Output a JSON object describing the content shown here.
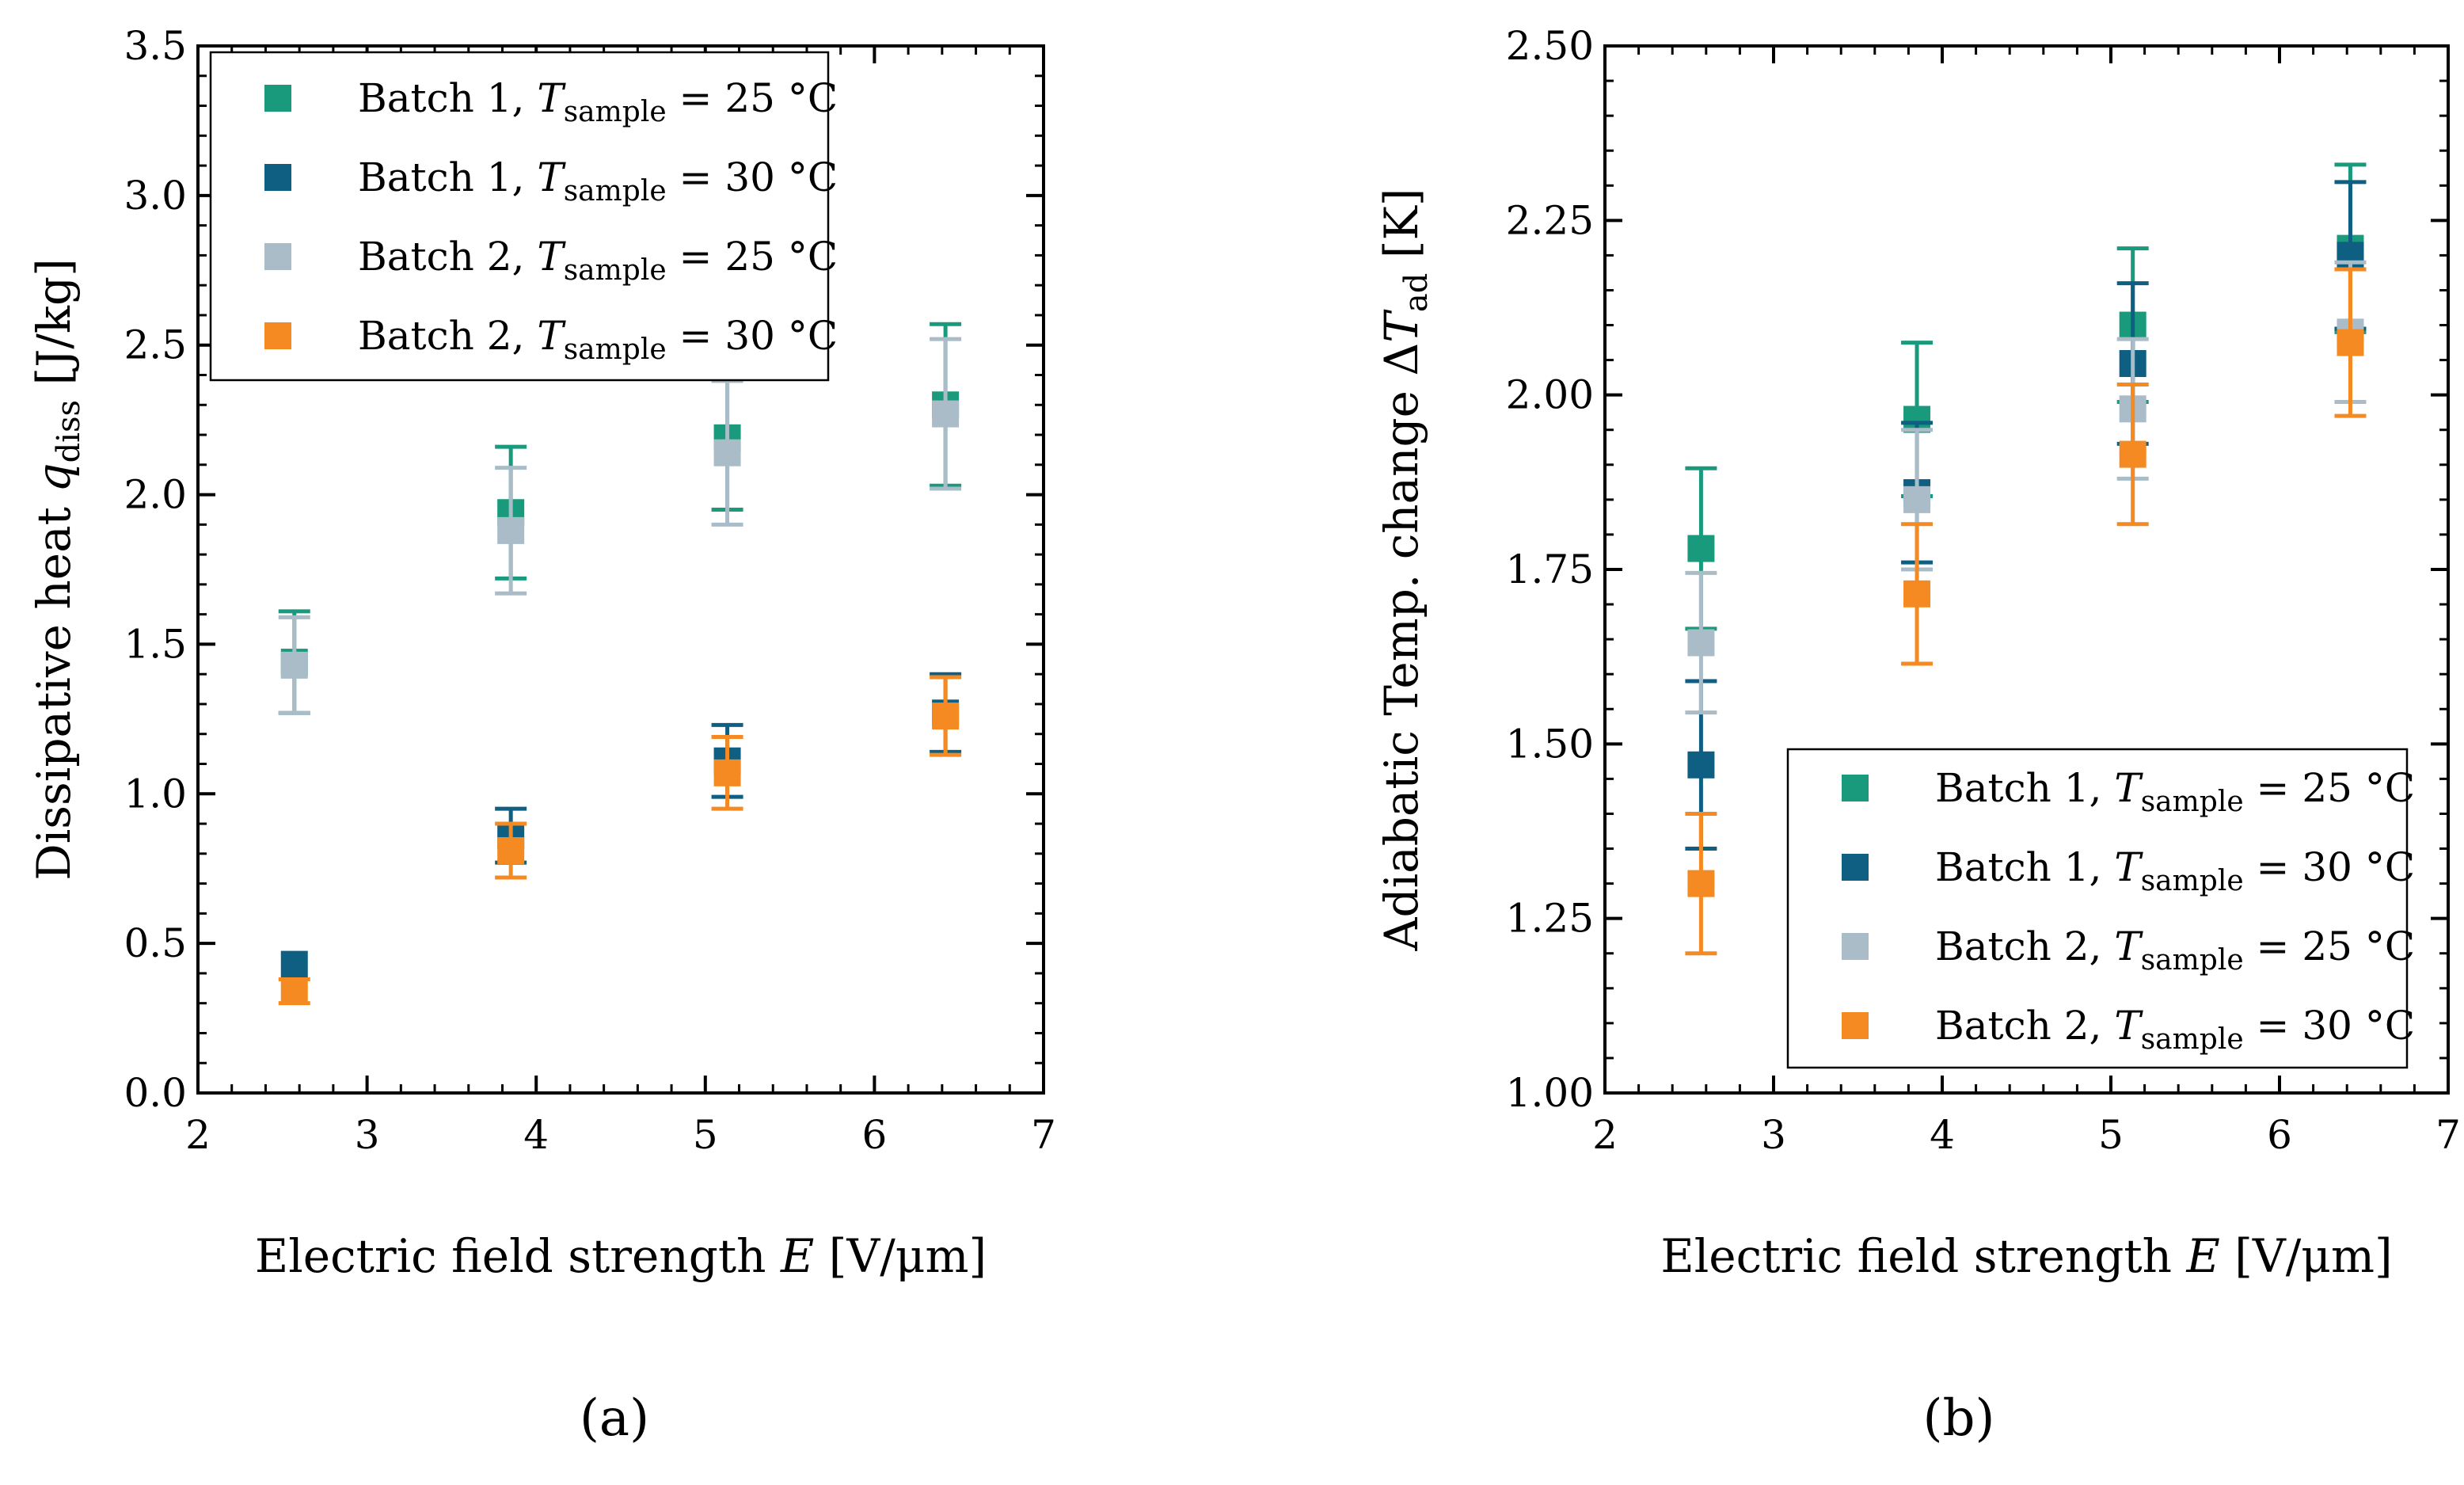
{
  "figure": {
    "panel_labels": [
      "(a)",
      "(b)"
    ]
  },
  "legend": {
    "entries": [
      {
        "prefix": "Batch 1, ",
        "sym": "T",
        "sub": "sample",
        "suffix": " = 25 °C"
      },
      {
        "prefix": "Batch 1, ",
        "sym": "T",
        "sub": "sample",
        "suffix": " = 30 °C"
      },
      {
        "prefix": "Batch 2, ",
        "sym": "T",
        "sub": "sample",
        "suffix": " = 25 °C"
      },
      {
        "prefix": "Batch 2, ",
        "sym": "T",
        "sub": "sample",
        "suffix": " = 30 °C"
      }
    ]
  },
  "colors": [
    "#1a9a7c",
    "#0f5f83",
    "#a9bcc8",
    "#f58a22"
  ],
  "chart_data": [
    {
      "type": "scatter",
      "panel": "(a)",
      "xlabel": "Electric field strength E [V/μm]",
      "xlabel_parts": {
        "pre": "Electric field strength ",
        "sym": "E",
        "post": " [V/μm]"
      },
      "ylabel": "Dissipative heat q_diss [J/kg]",
      "ylabel_parts": {
        "pre": "Dissipative heat ",
        "sym": "q",
        "sub": "diss",
        "post": " [J/kg]"
      },
      "xlim": [
        2,
        7
      ],
      "ylim": [
        0,
        3.5
      ],
      "xticks": [
        2,
        3,
        4,
        5,
        6,
        7
      ],
      "xtick_labels": [
        "2",
        "3",
        "4",
        "5",
        "6",
        "7"
      ],
      "yticks": [
        0,
        0.5,
        1.0,
        1.5,
        2.0,
        2.5,
        3.0,
        3.5
      ],
      "ytick_labels": [
        "0.0",
        "0.5",
        "1.0",
        "1.5",
        "2.0",
        "2.5",
        "3.0",
        "3.5"
      ],
      "legend_position": "top-left",
      "series": [
        {
          "name": "Batch 1, T_sample = 25 °C",
          "x": [
            2.57,
            3.85,
            5.13,
            6.42
          ],
          "y": [
            1.44,
            1.94,
            2.19,
            2.3
          ],
          "err": [
            0.17,
            0.22,
            0.24,
            0.27
          ]
        },
        {
          "name": "Batch 1, T_sample = 30 °C",
          "x": [
            2.57,
            3.85,
            5.13,
            6.42
          ],
          "y": [
            0.43,
            0.86,
            1.11,
            1.27
          ],
          "err": [
            0.0,
            0.09,
            0.12,
            0.13
          ]
        },
        {
          "name": "Batch 2, T_sample = 25 °C",
          "x": [
            2.57,
            3.85,
            5.13,
            6.42
          ],
          "y": [
            1.43,
            1.88,
            2.14,
            2.27
          ],
          "err": [
            0.16,
            0.21,
            0.24,
            0.25
          ]
        },
        {
          "name": "Batch 2, T_sample = 30 °C",
          "x": [
            2.57,
            3.85,
            5.13,
            6.42
          ],
          "y": [
            0.34,
            0.81,
            1.07,
            1.26
          ],
          "err": [
            0.04,
            0.09,
            0.12,
            0.13
          ]
        }
      ]
    },
    {
      "type": "scatter",
      "panel": "(b)",
      "xlabel": "Electric field strength E [V/μm]",
      "xlabel_parts": {
        "pre": "Electric field strength ",
        "sym": "E",
        "post": " [V/μm]"
      },
      "ylabel": "Adiabatic Temp. change ΔT_ad [K]",
      "ylabel_parts": {
        "pre": "Adiabatic Temp. change Δ",
        "sym": "T",
        "sub": "ad",
        "post": " [K]"
      },
      "xlim": [
        2,
        7
      ],
      "ylim": [
        1.0,
        2.5
      ],
      "xticks": [
        2,
        3,
        4,
        5,
        6,
        7
      ],
      "xtick_labels": [
        "2",
        "3",
        "4",
        "5",
        "6",
        "7"
      ],
      "yticks": [
        1.0,
        1.25,
        1.5,
        1.75,
        2.0,
        2.25,
        2.5
      ],
      "ytick_labels": [
        "1.00",
        "1.25",
        "1.50",
        "1.75",
        "2.00",
        "2.25",
        "2.50"
      ],
      "legend_position": "bottom-right",
      "series": [
        {
          "name": "Batch 1, T_sample = 25 °C",
          "x": [
            2.57,
            3.85,
            5.13,
            6.42
          ],
          "y": [
            1.78,
            1.965,
            2.1,
            2.21
          ],
          "err": [
            0.115,
            0.11,
            0.11,
            0.12
          ]
        },
        {
          "name": "Batch 1, T_sample = 30 °C",
          "x": [
            2.57,
            3.85,
            5.13,
            6.42
          ],
          "y": [
            1.47,
            1.86,
            2.045,
            2.2
          ],
          "err": [
            0.12,
            0.1,
            0.115,
            0.105
          ]
        },
        {
          "name": "Batch 2, T_sample = 25 °C",
          "x": [
            2.57,
            3.85,
            5.13,
            6.42
          ],
          "y": [
            1.645,
            1.85,
            1.98,
            2.09
          ],
          "err": [
            0.1,
            0.1,
            0.1,
            0.1
          ]
        },
        {
          "name": "Batch 2, T_sample = 30 °C",
          "x": [
            2.57,
            3.85,
            5.13,
            6.42
          ],
          "y": [
            1.3,
            1.715,
            1.915,
            2.075
          ],
          "err": [
            0.1,
            0.1,
            0.1,
            0.105
          ]
        }
      ]
    }
  ]
}
